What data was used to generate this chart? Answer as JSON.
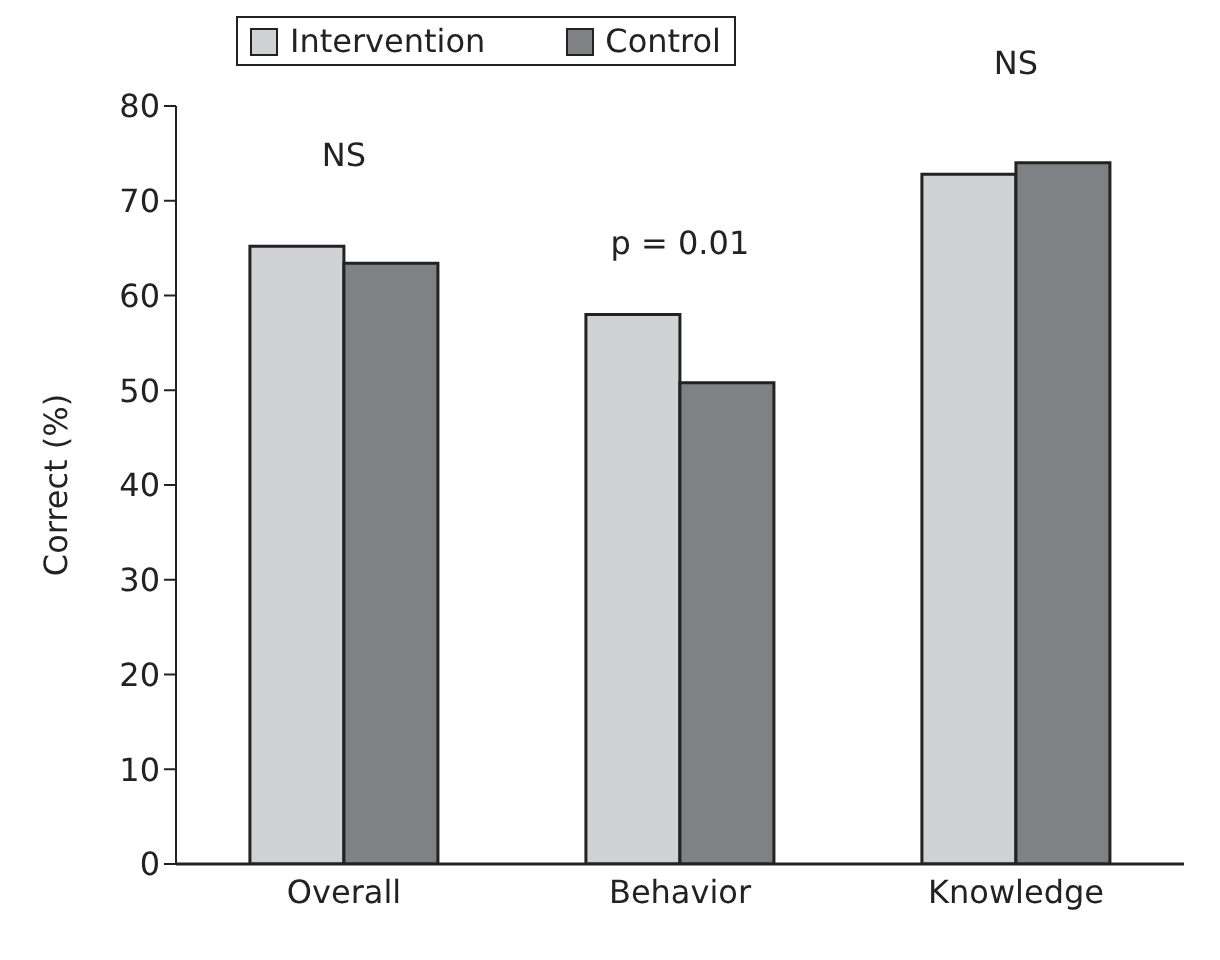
{
  "chart_data": {
    "type": "bar",
    "ylabel": "Correct (%)",
    "categories": [
      "Overall",
      "Behavior",
      "Knowledge"
    ],
    "series": [
      {
        "name": "Intervention",
        "color": "#d1d2d4",
        "values": [
          65.2,
          58,
          72.8
        ]
      },
      {
        "name": "Control",
        "color": "#808184",
        "values": [
          63.4,
          50.8,
          74
        ]
      }
    ],
    "ylim": [
      0,
      80
    ],
    "yticks": [
      0,
      10,
      20,
      30,
      40,
      50,
      60,
      70,
      80
    ],
    "grid": false,
    "legend": "top",
    "annotations": [
      "NS",
      "p = 0.01",
      "NS"
    ]
  }
}
